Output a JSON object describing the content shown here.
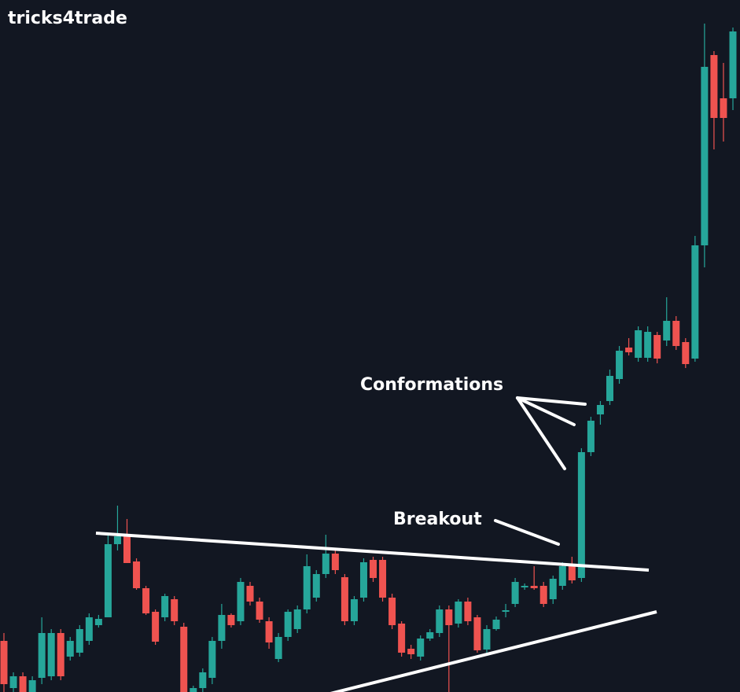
{
  "brand": "tricks4trade",
  "chart_data": {
    "type": "candlestick",
    "annotations": [
      "Conformations",
      "Breakout"
    ],
    "up_color": "#26a69a",
    "down_color": "#ef5350",
    "ylim": [
      0,
      880
    ],
    "open": [
      65,
      5,
      20,
      0,
      18,
      20,
      75,
      45,
      50,
      65,
      85,
      95,
      188,
      198,
      166,
      132,
      102,
      95,
      118,
      83,
      0,
      5,
      18,
      65,
      98,
      90,
      135,
      115,
      90,
      42,
      70,
      80,
      105,
      120,
      150,
      176,
      146,
      90,
      120,
      168,
      168,
      120,
      87,
      55,
      45,
      68,
      75,
      105,
      87,
      115,
      95,
      54,
      80,
      102,
      112,
      133,
      135,
      135,
      118,
      135,
      160,
      145,
      305,
      353,
      370,
      398,
      438,
      425,
      425,
      454,
      447,
      472,
      445,
      424,
      568,
      810,
      755,
      755
    ],
    "high": [
      75,
      25,
      25,
      20,
      95,
      80,
      80,
      70,
      85,
      100,
      98,
      200,
      237,
      220,
      170,
      135,
      105,
      125,
      122,
      88,
      8,
      30,
      70,
      112,
      100,
      145,
      140,
      120,
      95,
      75,
      105,
      110,
      175,
      155,
      200,
      180,
      150,
      122,
      170,
      172,
      172,
      125,
      90,
      60,
      72,
      80,
      110,
      110,
      118,
      120,
      98,
      85,
      96,
      112,
      145,
      138,
      160,
      140,
      148,
      165,
      172,
      310,
      350,
      370,
      410,
      440,
      450,
      465,
      465,
      458,
      502,
      478,
      450,
      580,
      850,
      815,
      800,
      845
    ],
    "low": [
      0,
      0,
      0,
      0,
      10,
      15,
      15,
      40,
      45,
      60,
      82,
      95,
      180,
      164,
      130,
      98,
      60,
      90,
      85,
      0,
      0,
      0,
      10,
      55,
      82,
      85,
      110,
      88,
      55,
      38,
      65,
      75,
      100,
      115,
      145,
      150,
      85,
      85,
      115,
      140,
      115,
      80,
      45,
      42,
      40,
      65,
      70,
      0,
      82,
      85,
      50,
      50,
      78,
      95,
      108,
      130,
      130,
      108,
      112,
      130,
      138,
      140,
      300,
      340,
      365,
      392,
      428,
      420,
      420,
      418,
      440,
      435,
      412,
      420,
      540,
      690,
      700,
      740
    ],
    "close": [
      10,
      20,
      0,
      15,
      75,
      75,
      20,
      65,
      80,
      95,
      93,
      188,
      198,
      164,
      132,
      100,
      64,
      122,
      90,
      0,
      5,
      25,
      65,
      98,
      85,
      140,
      115,
      92,
      63,
      70,
      102,
      105,
      160,
      150,
      176,
      155,
      90,
      118,
      165,
      145,
      120,
      85,
      50,
      48,
      68,
      76,
      105,
      85,
      115,
      90,
      53,
      80,
      92,
      104,
      140,
      135,
      132,
      112,
      144,
      160,
      142,
      305,
      345,
      365,
      402,
      434,
      432,
      460,
      458,
      424,
      472,
      440,
      417,
      568,
      795,
      730,
      730,
      840
    ]
  }
}
